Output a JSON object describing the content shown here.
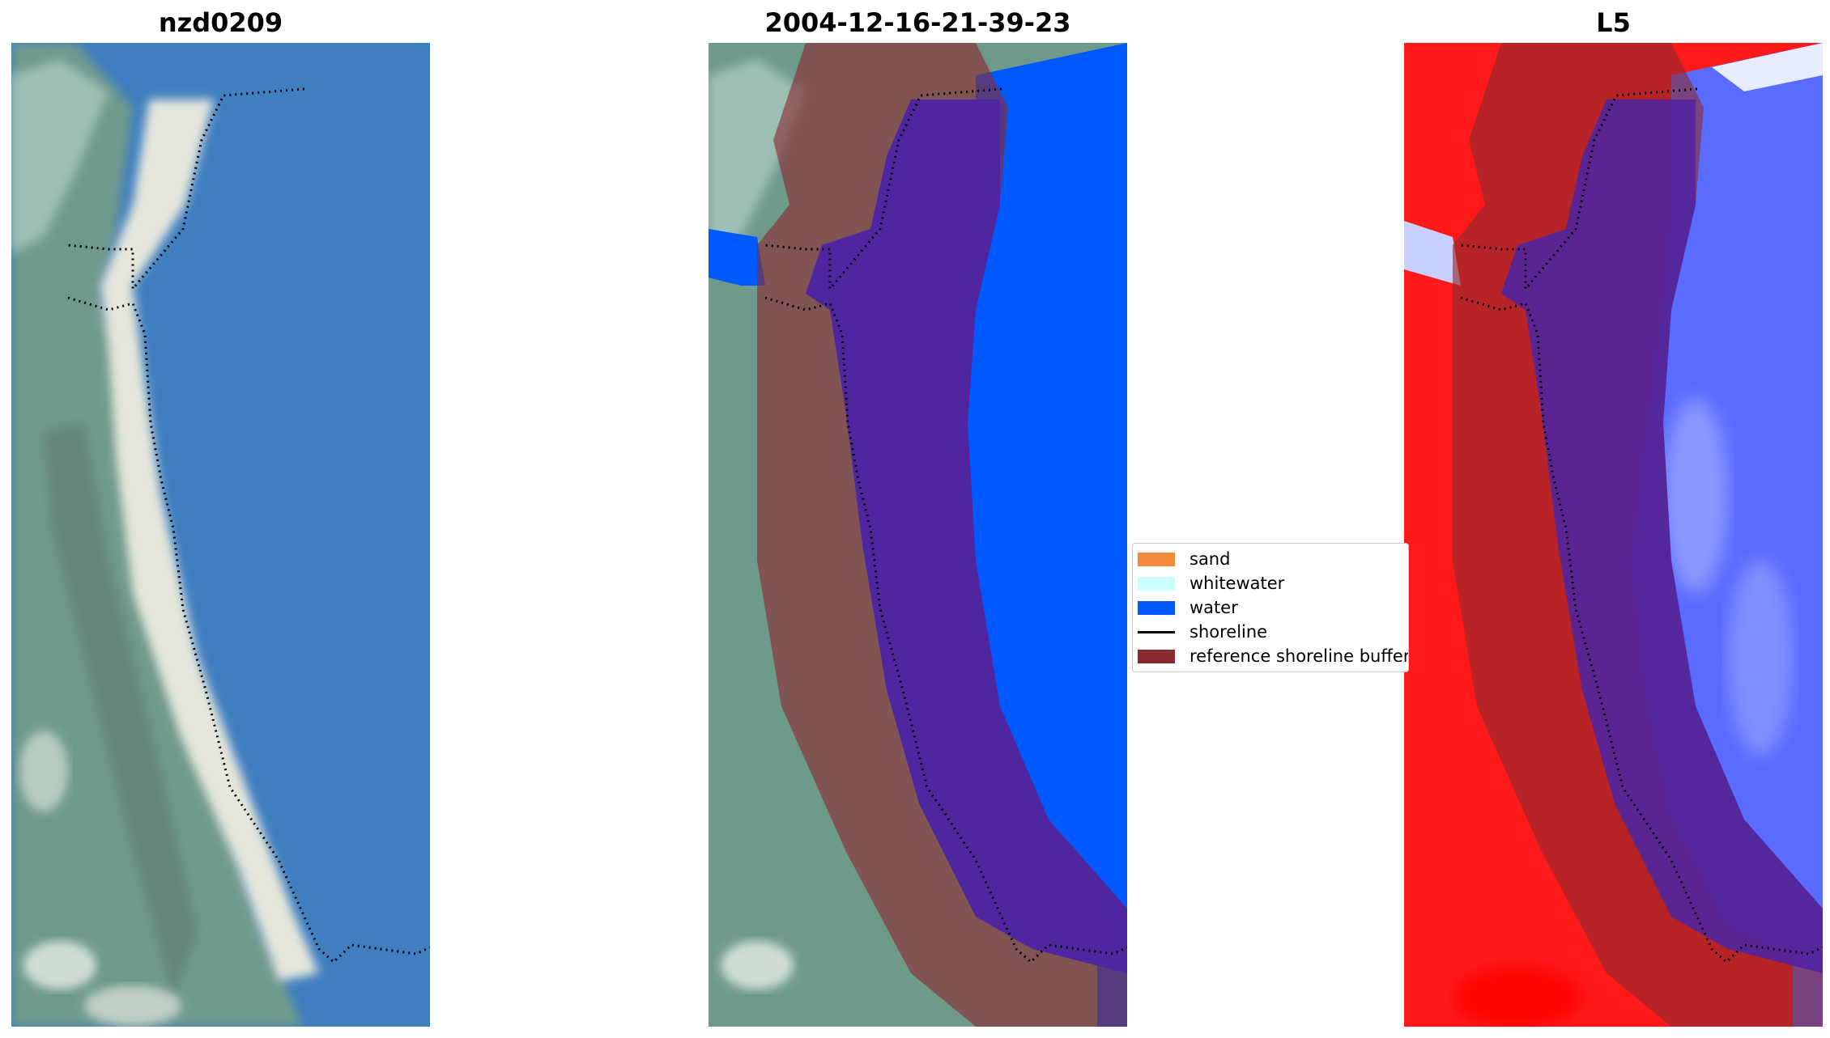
{
  "panels": [
    {
      "title": "nzd0209"
    },
    {
      "title": "2004-12-16-21-39-23"
    },
    {
      "title": "L5"
    }
  ],
  "legend": {
    "items": [
      {
        "label": "sand",
        "color": "#f28c3c",
        "kind": "patch"
      },
      {
        "label": "whitewater",
        "color": "#ccffff",
        "kind": "patch"
      },
      {
        "label": "water",
        "color": "#0059ff",
        "kind": "patch"
      },
      {
        "label": "shoreline",
        "color": "#000000",
        "kind": "line"
      },
      {
        "label": "reference shoreline buffer",
        "color": "#8b2a2e",
        "kind": "patch"
      }
    ]
  },
  "colors": {
    "water_rgb": "#3f7fc0",
    "land_rgb": "#6e9a8c",
    "sand_rgb": "#e6e6dc",
    "buffer": "#8b2a2e",
    "classified_water": "#0059ff",
    "index_red": "#ff1a1a",
    "index_blue": "#5a6cff"
  }
}
